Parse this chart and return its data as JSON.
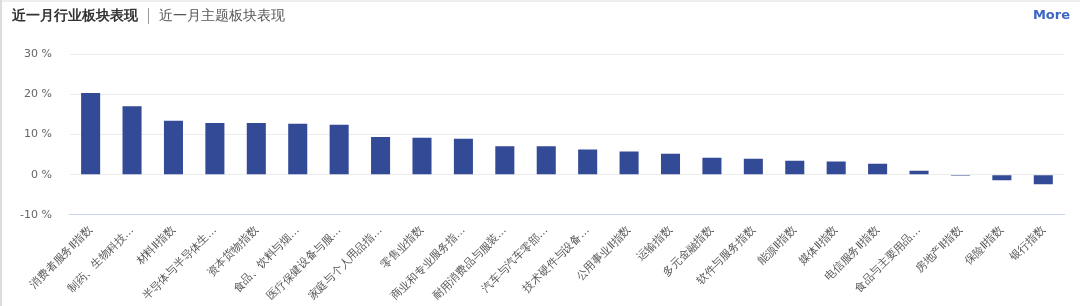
{
  "chart_data": {
    "type": "bar",
    "title": "近一月行业板块表现",
    "subtitle": "近一月主题板块表现",
    "annotations": [
      "More"
    ],
    "categories": [
      "消费者服务Ⅱ指数",
      "制药、生物科技…",
      "材料Ⅱ指数",
      "半导体与半导体生…",
      "资本货物指数",
      "食品、饮料与烟…",
      "医疗保健设备与服…",
      "家庭与个人用品指…",
      "零售业指数",
      "商业和专业服务指…",
      "耐用消费品与服装…",
      "汽车与汽车零部…",
      "技术硬件与设备…",
      "公用事业Ⅱ指数",
      "运输指数",
      "多元金融指数",
      "软件与服务指数",
      "能源Ⅱ指数",
      "媒体Ⅱ指数",
      "电信服务Ⅱ指数",
      "食品与主要用品…",
      "房地产Ⅱ指数",
      "保险Ⅱ指数",
      "银行指数"
    ],
    "values": [
      20.4,
      17.1,
      13.5,
      12.9,
      12.9,
      12.7,
      12.5,
      9.4,
      9.2,
      9.0,
      7.1,
      7.1,
      6.3,
      5.8,
      5.2,
      4.2,
      4.0,
      3.5,
      3.3,
      2.7,
      1.0,
      -0.3,
      -1.4,
      -2.4
    ],
    "color": "#334a96",
    "ylim": [
      -10,
      30
    ],
    "yticks": [
      {
        "value": -10,
        "label": "-10 %"
      },
      {
        "value": 0,
        "label": "0 %"
      },
      {
        "value": 10,
        "label": "10 %"
      },
      {
        "value": 20,
        "label": "20 %"
      },
      {
        "value": 30,
        "label": "30 %"
      }
    ],
    "grid": "y",
    "legend": false
  }
}
